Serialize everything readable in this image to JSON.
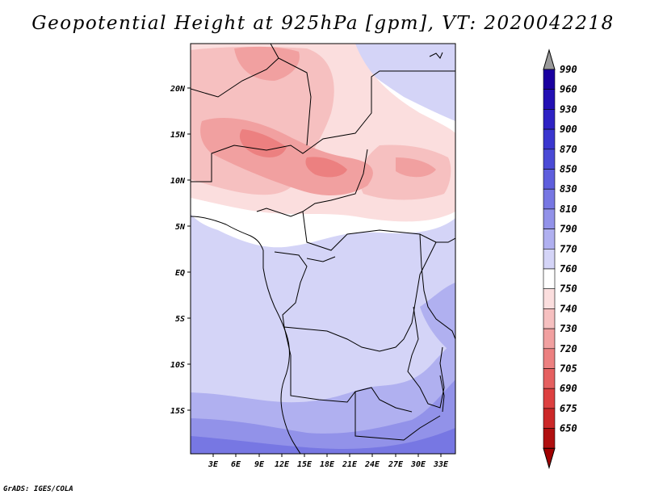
{
  "title": "Geopotential Height at 925hPa [gpm], VT: 2020042218",
  "credit": "GrADS: IGES/COLA",
  "map": {
    "lat_ticks": [
      "20N",
      "15N",
      "10N",
      "5N",
      "EQ",
      "5S",
      "10S",
      "15S"
    ],
    "lon_ticks": [
      "3E",
      "6E",
      "9E",
      "12E",
      "15E",
      "18E",
      "21E",
      "24E",
      "27E",
      "30E",
      "33E"
    ]
  },
  "colorbar": {
    "levels": [
      "990",
      "960",
      "930",
      "900",
      "870",
      "850",
      "830",
      "810",
      "790",
      "770",
      "760",
      "750",
      "740",
      "730",
      "720",
      "705",
      "690",
      "675",
      "650"
    ],
    "colors": [
      "#1a00a0",
      "#2310b4",
      "#2e22c4",
      "#3a36cf",
      "#4a4ad6",
      "#5e5edd",
      "#7777e3",
      "#9292e9",
      "#b0b0f0",
      "#d4d4f7",
      "#ffffff",
      "#fbdede",
      "#f6c0c0",
      "#f1a0a0",
      "#ec8080",
      "#e56060",
      "#dd4040",
      "#cc2828",
      "#b01010"
    ],
    "top_arrow_color": "#9a9a9a",
    "bottom_arrow_color": "#a00000"
  }
}
